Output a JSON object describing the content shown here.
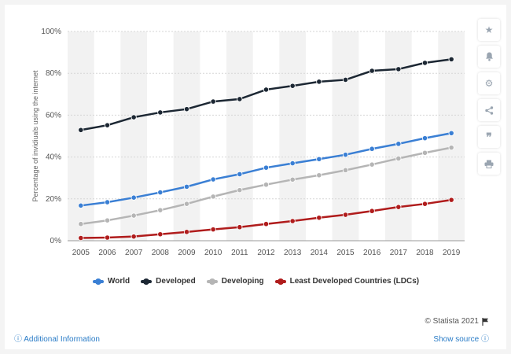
{
  "chart_data": {
    "type": "line",
    "title": "",
    "xlabel": "",
    "ylabel": "Percentage of invidiuals using the internet",
    "ylim": [
      0,
      100
    ],
    "yticks": [
      "0%",
      "20%",
      "40%",
      "60%",
      "80%",
      "100%"
    ],
    "categories": [
      "2005",
      "2006",
      "2007",
      "2008",
      "2009",
      "2010",
      "2011",
      "2012",
      "2013",
      "2014",
      "2015",
      "2016",
      "2017",
      "2018",
      "2019"
    ],
    "series": [
      {
        "name": "World",
        "color": "#3a7fd4",
        "values": [
          16.8,
          18.4,
          20.6,
          23.1,
          25.8,
          29.3,
          31.8,
          34.9,
          37.0,
          39.0,
          41.1,
          43.9,
          46.3,
          49.0,
          51.4
        ]
      },
      {
        "name": "Developed",
        "color": "#1c2733",
        "values": [
          52.9,
          55.2,
          59.0,
          61.3,
          62.9,
          66.5,
          67.7,
          72.2,
          74.0,
          76.0,
          76.9,
          81.2,
          82.0,
          85.0,
          86.7
        ]
      },
      {
        "name": "Developing",
        "color": "#b5b5b5",
        "values": [
          8.0,
          9.7,
          12.0,
          14.6,
          17.6,
          21.1,
          24.2,
          26.8,
          29.2,
          31.3,
          33.7,
          36.4,
          39.3,
          42.0,
          44.5
        ]
      },
      {
        "name": "Least Developed Countries (LDCs)",
        "color": "#b01c1c",
        "values": [
          1.3,
          1.5,
          2.0,
          3.1,
          4.2,
          5.4,
          6.5,
          8.0,
          9.4,
          11.0,
          12.4,
          14.2,
          16.1,
          17.6,
          19.5
        ]
      }
    ]
  },
  "toolbar": {
    "icons": [
      "star-icon",
      "bell-icon",
      "gear-icon",
      "share-icon",
      "quote-icon",
      "print-icon"
    ]
  },
  "credit": "© Statista 2021",
  "footer": {
    "additional_info": "ⓘ Additional Information",
    "show_source": "Show source ⓘ"
  }
}
